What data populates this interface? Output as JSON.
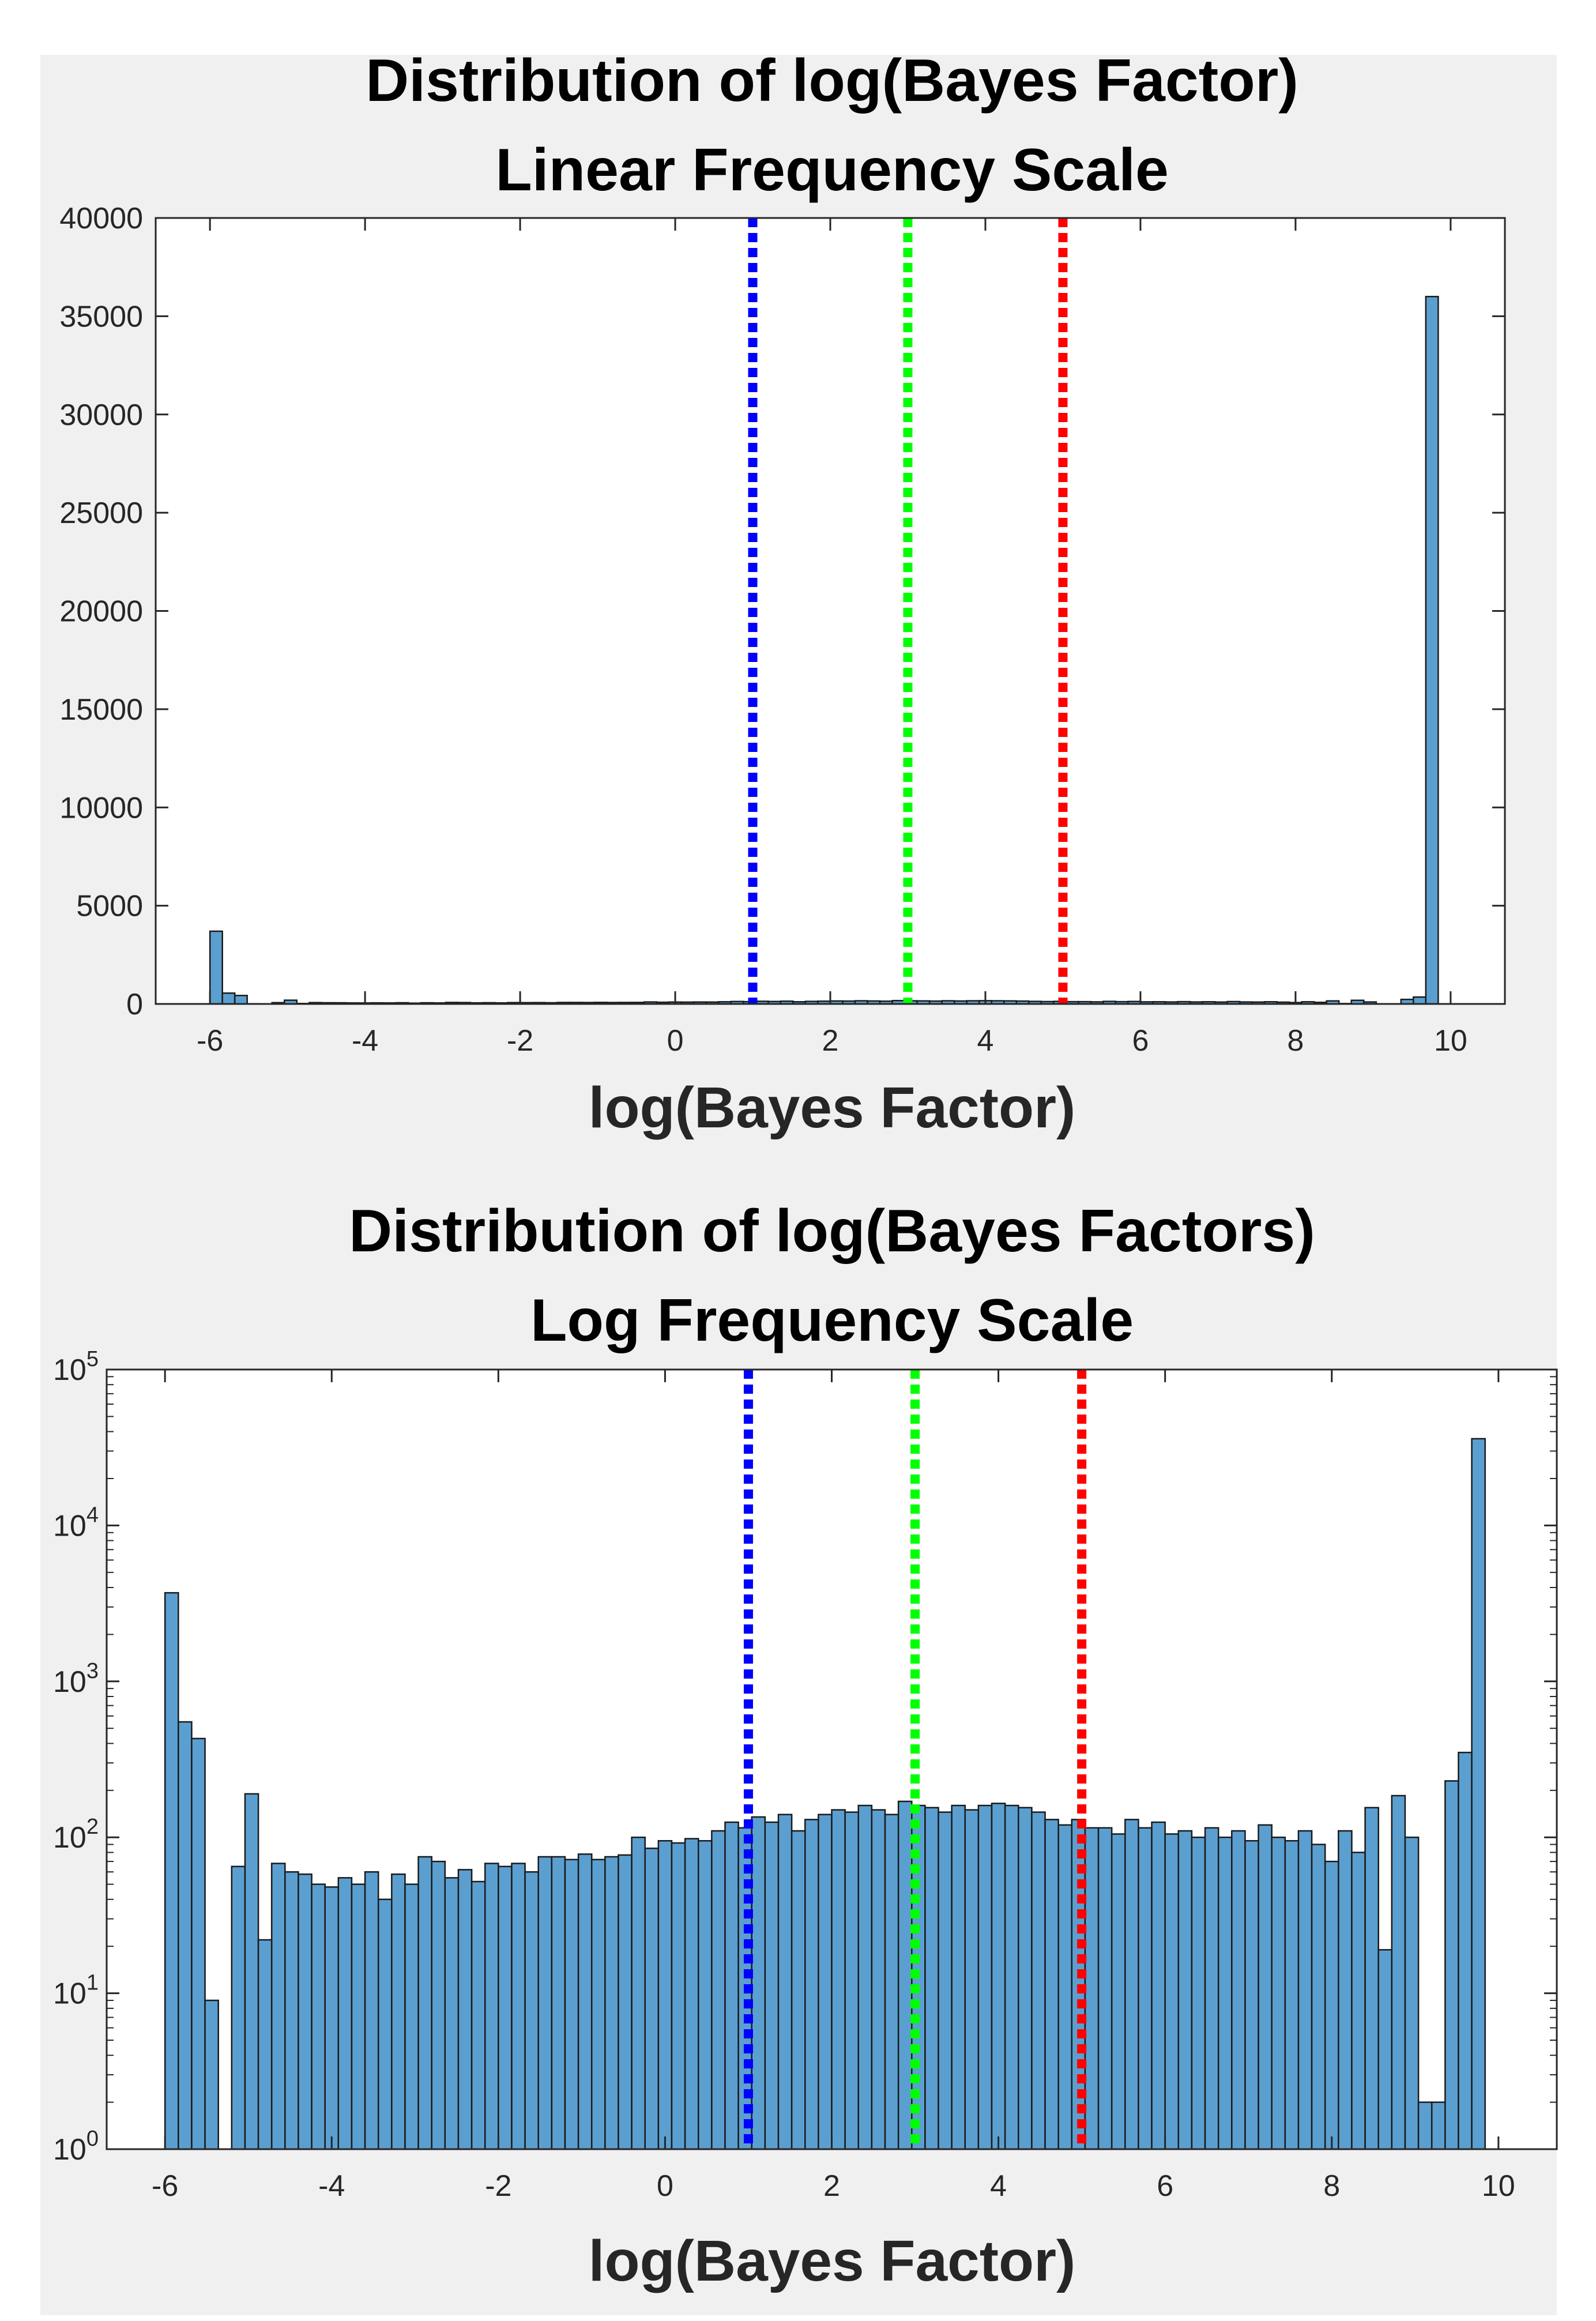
{
  "colors": {
    "figure_bg": "#f0f0f0",
    "axes_bg": "#ffffff",
    "bar_fill": "#5b9fd0",
    "bar_edge": "#1a1a1a",
    "axis": "#262626",
    "blue_line": "#0000ff",
    "green_line": "#00ff00",
    "red_line": "#ff0000"
  },
  "chart_data": [
    {
      "type": "bar",
      "title": "Distribution of log(Bayes Factor)",
      "subtitle": "Linear Frequency Scale",
      "xlabel": "log(Bayes Factor)",
      "ylabel": "",
      "xlim": [
        -6.7,
        10.7
      ],
      "ylim": [
        0,
        40000
      ],
      "yscale": "linear",
      "xticks": [
        -6,
        -4,
        -2,
        0,
        2,
        4,
        6,
        8,
        10
      ],
      "xtick_labels": [
        "-6",
        "-4",
        "-2",
        "0",
        "2",
        "4",
        "6",
        "8",
        "10"
      ],
      "yticks": [
        0,
        5000,
        10000,
        15000,
        20000,
        25000,
        30000,
        35000,
        40000
      ],
      "ytick_labels": [
        "0",
        "5000",
        "10000",
        "15000",
        "20000",
        "25000",
        "30000",
        "35000",
        "40000"
      ],
      "bin_start": -6.0,
      "bin_width": 0.16,
      "values": [
        3700,
        550,
        430,
        9,
        0,
        65,
        190,
        22,
        68,
        60,
        58,
        50,
        48,
        55,
        50,
        60,
        40,
        58,
        50,
        75,
        70,
        55,
        62,
        52,
        68,
        65,
        68,
        60,
        75,
        75,
        72,
        78,
        72,
        75,
        77,
        100,
        85,
        95,
        92,
        98,
        95,
        110,
        125,
        115,
        135,
        125,
        140,
        110,
        130,
        140,
        150,
        145,
        160,
        150,
        140,
        170,
        160,
        155,
        145,
        160,
        150,
        160,
        165,
        160,
        155,
        145,
        130,
        120,
        130,
        115,
        115,
        105,
        130,
        115,
        125,
        105,
        110,
        100,
        115,
        100,
        110,
        95,
        120,
        100,
        95,
        110,
        90,
        70,
        110,
        80,
        155,
        19,
        185,
        100,
        2,
        2,
        230,
        350,
        36000
      ],
      "vlines": [
        {
          "x": 1,
          "color": "#0000ff"
        },
        {
          "x": 3,
          "color": "#00ff00"
        },
        {
          "x": 5,
          "color": "#ff0000"
        }
      ]
    },
    {
      "type": "bar",
      "title": "Distribution of log(Bayes Factors)",
      "subtitle": "Log Frequency Scale",
      "xlabel": "log(Bayes Factor)",
      "ylabel": "",
      "xlim": [
        -6.7,
        10.7
      ],
      "ylim": [
        1,
        100000
      ],
      "yscale": "log",
      "xticks": [
        -6,
        -4,
        -2,
        0,
        2,
        4,
        6,
        8,
        10
      ],
      "xtick_labels": [
        "-6",
        "-4",
        "-2",
        "0",
        "2",
        "4",
        "6",
        "8",
        "10"
      ],
      "yticks": [
        1,
        10,
        100,
        1000,
        10000,
        100000
      ],
      "ytick_bases": [
        "10",
        "10",
        "10",
        "10",
        "10",
        "10"
      ],
      "ytick_exps": [
        "0",
        "1",
        "2",
        "3",
        "4",
        "5"
      ],
      "bin_start": -6.0,
      "bin_width": 0.16,
      "values": [
        3700,
        550,
        430,
        9,
        0,
        65,
        190,
        22,
        68,
        60,
        58,
        50,
        48,
        55,
        50,
        60,
        40,
        58,
        50,
        75,
        70,
        55,
        62,
        52,
        68,
        65,
        68,
        60,
        75,
        75,
        72,
        78,
        72,
        75,
        77,
        100,
        85,
        95,
        92,
        98,
        95,
        110,
        125,
        115,
        135,
        125,
        140,
        110,
        130,
        140,
        150,
        145,
        160,
        150,
        140,
        170,
        160,
        155,
        145,
        160,
        150,
        160,
        165,
        160,
        155,
        145,
        130,
        120,
        130,
        115,
        115,
        105,
        130,
        115,
        125,
        105,
        110,
        100,
        115,
        100,
        110,
        95,
        120,
        100,
        95,
        110,
        90,
        70,
        110,
        80,
        155,
        19,
        185,
        100,
        2,
        2,
        230,
        350,
        36000
      ],
      "vlines": [
        {
          "x": 1,
          "color": "#0000ff"
        },
        {
          "x": 3,
          "color": "#00ff00"
        },
        {
          "x": 5,
          "color": "#ff0000"
        }
      ]
    }
  ]
}
